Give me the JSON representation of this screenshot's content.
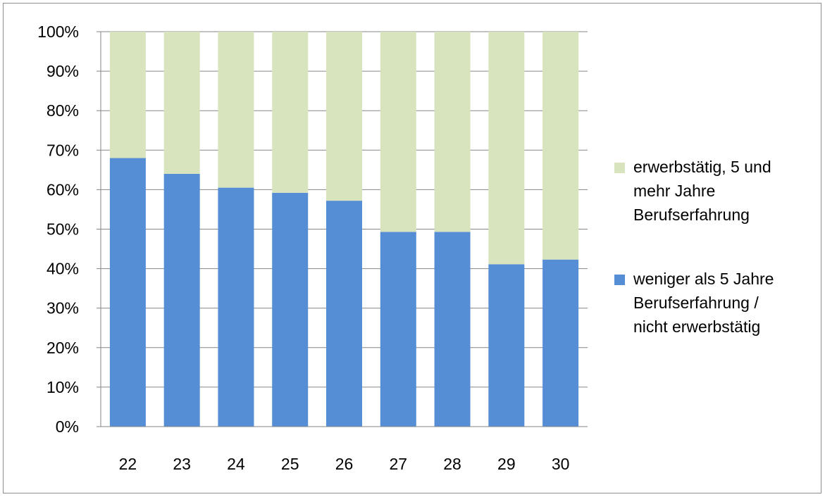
{
  "chart_data": {
    "type": "bar",
    "stacked": true,
    "normalized_percent": true,
    "categories": [
      "22",
      "23",
      "24",
      "25",
      "26",
      "27",
      "28",
      "29",
      "30"
    ],
    "series": [
      {
        "name": "weniger als 5 Jahre Berufserfahrung / nicht erwerbstätig",
        "name_lines": [
          "weniger als 5 Jahre",
          "Berufserfahrung /",
          "nicht erwerbstätig"
        ],
        "color": "#558ED5",
        "values": [
          68,
          64,
          60.5,
          59.2,
          57.2,
          49.3,
          49.3,
          41.1,
          42.3
        ]
      },
      {
        "name": "erwerbstätig, 5 und mehr Jahre Berufserfahrung",
        "name_lines": [
          "erwerbstätig, 5 und",
          "mehr Jahre",
          "Berufserfahrung"
        ],
        "color": "#D7E4BD",
        "values": [
          32,
          36,
          39.5,
          40.8,
          42.8,
          50.7,
          50.7,
          58.9,
          57.7
        ]
      }
    ],
    "yticks": [
      "0%",
      "10%",
      "20%",
      "30%",
      "40%",
      "50%",
      "60%",
      "70%",
      "80%",
      "90%",
      "100%"
    ],
    "ylim": [
      0,
      100
    ],
    "grid": true,
    "legend_position": "right"
  }
}
